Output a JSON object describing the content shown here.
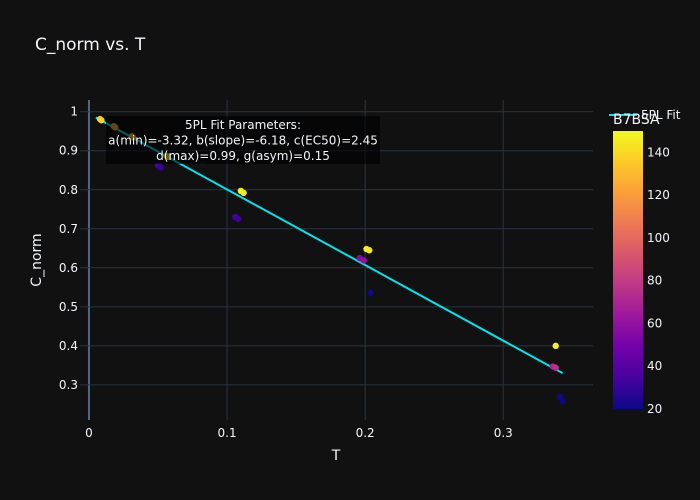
{
  "chart_data": {
    "type": "scatter",
    "title": "C_norm vs. T",
    "xlabel": "T",
    "ylabel": "C_norm",
    "xlim": [
      -0.0065,
      0.365
    ],
    "ylim": [
      0.21,
      1.03
    ],
    "x_ticks": [
      0,
      0.1,
      0.2,
      0.3
    ],
    "x_tick_labels": [
      "0",
      "0.1",
      "0.2",
      "0.3"
    ],
    "y_ticks": [
      0.3,
      0.4,
      0.5,
      0.6,
      0.7,
      0.8,
      0.9,
      1.0
    ],
    "y_tick_labels": [
      "0.3",
      "0.4",
      "0.5",
      "0.6",
      "0.7",
      "0.8",
      "0.9",
      "1"
    ],
    "grid": true,
    "points": [
      {
        "x": 0.008,
        "y": 0.981,
        "color_value": 135
      },
      {
        "x": 0.009,
        "y": 0.978,
        "color_value": 140
      },
      {
        "x": 0.018,
        "y": 0.963,
        "color_value": 130
      },
      {
        "x": 0.019,
        "y": 0.96,
        "color_value": 125
      },
      {
        "x": 0.031,
        "y": 0.937,
        "color_value": 135
      },
      {
        "x": 0.032,
        "y": 0.934,
        "color_value": 128
      },
      {
        "x": 0.05,
        "y": 0.862,
        "color_value": 35
      },
      {
        "x": 0.052,
        "y": 0.857,
        "color_value": 30
      },
      {
        "x": 0.056,
        "y": 0.887,
        "color_value": 145
      },
      {
        "x": 0.057,
        "y": 0.884,
        "color_value": 148
      },
      {
        "x": 0.106,
        "y": 0.73,
        "color_value": 35
      },
      {
        "x": 0.108,
        "y": 0.725,
        "color_value": 32
      },
      {
        "x": 0.11,
        "y": 0.797,
        "color_value": 148
      },
      {
        "x": 0.112,
        "y": 0.792,
        "color_value": 145
      },
      {
        "x": 0.196,
        "y": 0.625,
        "color_value": 55
      },
      {
        "x": 0.199,
        "y": 0.619,
        "color_value": 60
      },
      {
        "x": 0.201,
        "y": 0.648,
        "color_value": 148
      },
      {
        "x": 0.203,
        "y": 0.645,
        "color_value": 145
      },
      {
        "x": 0.204,
        "y": 0.536,
        "color_value": 22
      },
      {
        "x": 0.336,
        "y": 0.347,
        "color_value": 70
      },
      {
        "x": 0.338,
        "y": 0.344,
        "color_value": 75
      },
      {
        "x": 0.338,
        "y": 0.4,
        "color_value": 148
      },
      {
        "x": 0.341,
        "y": 0.27,
        "color_value": 22
      },
      {
        "x": 0.343,
        "y": 0.258,
        "color_value": 20
      }
    ],
    "fit_line": {
      "name": "5PL Fit",
      "color": "#00e5ee",
      "x": [
        0.005,
        0.343
      ],
      "y": [
        0.985,
        0.33
      ]
    },
    "annotation": {
      "lines": [
        "5PL Fit Parameters:",
        "a(min)=-3.32, b(slope)=-6.18, c(EC50)=2.45",
        "d(max)=0.99, g(asym)=0.15"
      ]
    },
    "colorbar": {
      "title": "B7BSA",
      "min": 20,
      "max": 150,
      "ticks": [
        20,
        40,
        60,
        80,
        100,
        120,
        140
      ],
      "colorscale": [
        "#0d0887",
        "#46039f",
        "#7201a8",
        "#9c179e",
        "#bd3786",
        "#d8576b",
        "#ed7953",
        "#fb9f3a",
        "#fdca26",
        "#f0f921"
      ]
    },
    "colors": {
      "background": "#111111",
      "grid": "#283442",
      "text": "#f2f5fa"
    }
  }
}
